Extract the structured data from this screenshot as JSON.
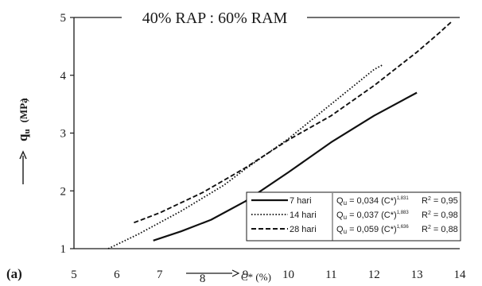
{
  "chart_data": {
    "type": "line",
    "title": "40% RAP : 60% RAM",
    "panel_label": "(a)",
    "xlabel": "C* (%)",
    "ylabel": "q",
    "ylabel_sub": "u",
    "ylabel_unit": "(MPa",
    "ylabel_close": ")",
    "xlim": [
      5,
      14
    ],
    "ylim": [
      1,
      5
    ],
    "xticks": [
      "5",
      "6",
      "7",
      "8",
      "9",
      "10",
      "11",
      "12",
      "13",
      "14"
    ],
    "yticks": [
      "1",
      "2",
      "3",
      "4",
      "5"
    ],
    "grid": false,
    "legend_position": "bottom-right",
    "series": [
      {
        "name": "7 hari",
        "style": "solid",
        "color": "#111111",
        "equation_coef": "Q",
        "equation_sub": "u",
        "equation_mid": " = 0,034 (C*)",
        "equation_exp": "1,831",
        "r2_label": "R",
        "r2_exp": "2",
        "r2_value": " = 0,95",
        "x": [
          6.85,
          7.5,
          8.2,
          9.0,
          10.0,
          11.0,
          12.0,
          13.0
        ],
        "y": [
          1.14,
          1.3,
          1.5,
          1.82,
          2.32,
          2.84,
          3.3,
          3.7
        ]
      },
      {
        "name": "14 hari",
        "style": "dotted",
        "color": "#111111",
        "equation_coef": "Q",
        "equation_sub": "u",
        "equation_mid": " = 0,037 (C*)",
        "equation_exp": "1,883",
        "r2_label": "R",
        "r2_exp": "2",
        "r2_value": " = 0,98",
        "x": [
          5.8,
          6.5,
          7.5,
          8.5,
          9.0,
          10.0,
          11.0,
          12.0,
          12.2
        ],
        "y": [
          1.0,
          1.25,
          1.65,
          2.1,
          2.38,
          2.9,
          3.5,
          4.1,
          4.18
        ]
      },
      {
        "name": "28 hari",
        "style": "dashed",
        "color": "#111111",
        "equation_coef": "Q",
        "equation_sub": "u",
        "equation_mid": " = 0,059 (C*)",
        "equation_exp": "1,636",
        "r2_label": "R",
        "r2_exp": "2",
        "r2_value": " = 0,88",
        "x": [
          6.4,
          7.0,
          8.0,
          9.0,
          10.0,
          11.0,
          12.0,
          13.0,
          13.5,
          13.8
        ],
        "y": [
          1.45,
          1.62,
          1.97,
          2.4,
          2.88,
          3.3,
          3.82,
          4.4,
          4.72,
          4.92
        ]
      }
    ]
  }
}
